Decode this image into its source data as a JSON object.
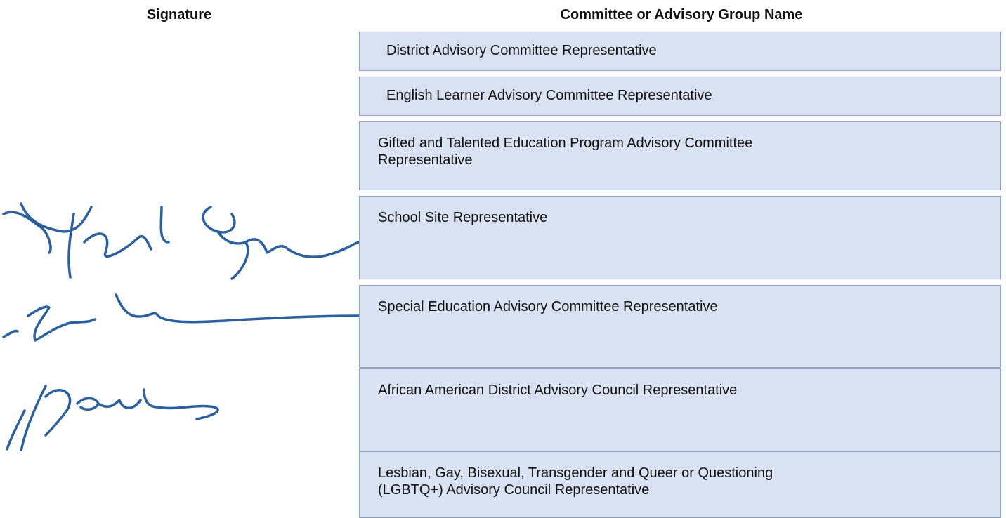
{
  "table": {
    "headers": [
      "Signature",
      "Committee or Advisory Group Name"
    ],
    "rows": [
      [
        "District Advisory Committee Representative"
      ],
      [
        "English Learner Advisory Committee Representative"
      ],
      [
        "Gifted and Talented Education Program Advisory Committee",
        "Representative"
      ],
      [
        "School Site Representative"
      ],
      [
        "Special Education Advisory Committee Representative"
      ],
      [
        "African American District Advisory Council Representative"
      ],
      [
        "Lesbian, Gay, Bisexual, Transgender and Queer or Questioning",
        "(LGBTQ+) Advisory Council Representative"
      ]
    ]
  }
}
